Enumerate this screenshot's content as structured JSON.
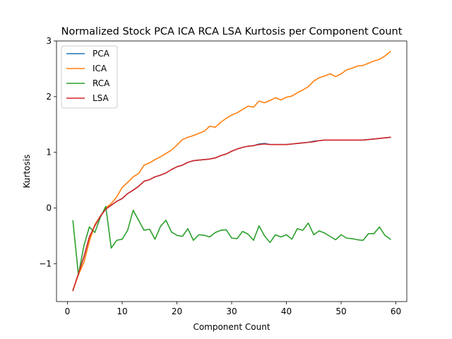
{
  "chart_data": {
    "type": "line",
    "title": "Normalized Stock PCA ICA RCA LSA Kurtosis per Component Count",
    "xlabel": "Component Count",
    "ylabel": "Kurtosis",
    "xlim": [
      -2,
      62
    ],
    "ylim": [
      -1.68,
      3.0
    ],
    "xticks": [
      0,
      10,
      20,
      30,
      40,
      50,
      60
    ],
    "yticks": [
      -1,
      0,
      1,
      2,
      3
    ],
    "grid": false,
    "legend_position": "top-left",
    "x": [
      1,
      2,
      3,
      4,
      5,
      6,
      7,
      8,
      9,
      10,
      11,
      12,
      13,
      14,
      15,
      16,
      17,
      18,
      19,
      20,
      21,
      22,
      23,
      24,
      25,
      26,
      27,
      28,
      29,
      30,
      31,
      32,
      33,
      34,
      35,
      36,
      37,
      38,
      39,
      40,
      41,
      42,
      43,
      44,
      45,
      46,
      47,
      48,
      49,
      50,
      51,
      52,
      53,
      54,
      55,
      56,
      57,
      58,
      59
    ],
    "series": [
      {
        "name": "PCA",
        "color": "#1f77b4",
        "values": [
          -1.48,
          -1.18,
          -0.88,
          -0.52,
          -0.32,
          -0.15,
          -0.02,
          0.05,
          0.12,
          0.17,
          0.26,
          0.32,
          0.39,
          0.48,
          0.51,
          0.56,
          0.59,
          0.63,
          0.69,
          0.74,
          0.77,
          0.82,
          0.85,
          0.86,
          0.87,
          0.88,
          0.9,
          0.94,
          0.97,
          1.02,
          1.06,
          1.09,
          1.11,
          1.12,
          1.15,
          1.16,
          1.14,
          1.14,
          1.14,
          1.14,
          1.15,
          1.16,
          1.17,
          1.18,
          1.2,
          1.21,
          1.22,
          1.22,
          1.22,
          1.22,
          1.22,
          1.22,
          1.22,
          1.22,
          1.23,
          1.24,
          1.25,
          1.26,
          1.27
        ]
      },
      {
        "name": "ICA",
        "color": "#ff7f0e",
        "values": [
          -1.48,
          -1.2,
          -0.98,
          -0.6,
          -0.3,
          -0.15,
          0.0,
          0.08,
          0.2,
          0.37,
          0.46,
          0.56,
          0.62,
          0.77,
          0.81,
          0.87,
          0.92,
          0.98,
          1.04,
          1.13,
          1.23,
          1.27,
          1.3,
          1.34,
          1.38,
          1.47,
          1.45,
          1.54,
          1.61,
          1.67,
          1.71,
          1.77,
          1.83,
          1.81,
          1.92,
          1.89,
          1.93,
          1.98,
          1.94,
          1.99,
          2.01,
          2.07,
          2.12,
          2.18,
          2.28,
          2.34,
          2.37,
          2.41,
          2.36,
          2.41,
          2.48,
          2.51,
          2.55,
          2.56,
          2.6,
          2.64,
          2.67,
          2.73,
          2.81
        ]
      },
      {
        "name": "RCA",
        "color": "#2ca02c",
        "values": [
          -0.23,
          -1.2,
          -0.68,
          -0.34,
          -0.44,
          -0.17,
          0.03,
          -0.72,
          -0.58,
          -0.56,
          -0.4,
          -0.04,
          -0.22,
          -0.4,
          -0.38,
          -0.56,
          -0.33,
          -0.22,
          -0.43,
          -0.49,
          -0.51,
          -0.37,
          -0.58,
          -0.48,
          -0.49,
          -0.52,
          -0.44,
          -0.4,
          -0.39,
          -0.54,
          -0.55,
          -0.42,
          -0.47,
          -0.58,
          -0.32,
          -0.5,
          -0.62,
          -0.48,
          -0.52,
          -0.48,
          -0.56,
          -0.37,
          -0.4,
          -0.27,
          -0.48,
          -0.41,
          -0.45,
          -0.51,
          -0.57,
          -0.48,
          -0.54,
          -0.55,
          -0.57,
          -0.58,
          -0.46,
          -0.46,
          -0.34,
          -0.49,
          -0.56
        ]
      },
      {
        "name": "LSA",
        "color": "#d62728",
        "values": [
          -1.48,
          -1.18,
          -0.88,
          -0.52,
          -0.32,
          -0.15,
          -0.02,
          0.05,
          0.12,
          0.17,
          0.26,
          0.32,
          0.39,
          0.48,
          0.51,
          0.56,
          0.59,
          0.63,
          0.69,
          0.74,
          0.77,
          0.82,
          0.85,
          0.86,
          0.87,
          0.88,
          0.9,
          0.94,
          0.97,
          1.02,
          1.06,
          1.09,
          1.11,
          1.12,
          1.14,
          1.15,
          1.14,
          1.14,
          1.14,
          1.14,
          1.15,
          1.16,
          1.17,
          1.18,
          1.19,
          1.21,
          1.22,
          1.22,
          1.22,
          1.22,
          1.22,
          1.22,
          1.22,
          1.22,
          1.23,
          1.24,
          1.25,
          1.26,
          1.27
        ]
      }
    ]
  }
}
